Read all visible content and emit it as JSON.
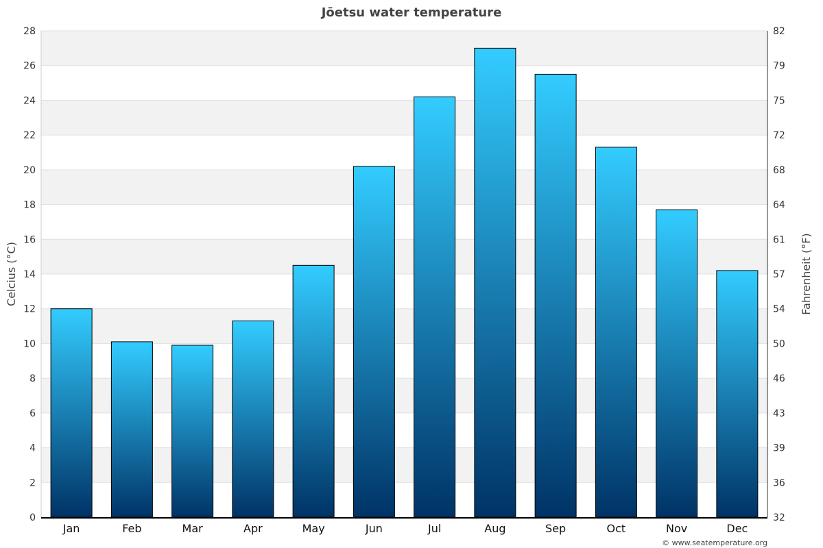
{
  "chart_data": {
    "type": "bar",
    "title": "Jōetsu water temperature",
    "categories": [
      "Jan",
      "Feb",
      "Mar",
      "Apr",
      "May",
      "Jun",
      "Jul",
      "Aug",
      "Sep",
      "Oct",
      "Nov",
      "Dec"
    ],
    "values": [
      12.0,
      10.1,
      9.9,
      11.3,
      14.5,
      20.2,
      24.2,
      27.0,
      25.5,
      21.3,
      17.7,
      14.2
    ],
    "ylabel": "Celcius (°C)",
    "ylabel_right": "Fahrenheit (°F)",
    "ylim": [
      0,
      28
    ],
    "yticks": [
      0,
      2,
      4,
      6,
      8,
      10,
      12,
      14,
      16,
      18,
      20,
      22,
      24,
      26,
      28
    ],
    "yticks_right": [
      32,
      36,
      39,
      43,
      46,
      50,
      54,
      57,
      61,
      64,
      68,
      72,
      75,
      79,
      82
    ],
    "grid": true,
    "banded_background": true,
    "colors": {
      "bar_top": "#33ccff",
      "bar_bottom": "#003366",
      "band": "#f2f2f2",
      "grid": "#e0e0e0"
    }
  },
  "credit": "© www.seatemperature.org"
}
